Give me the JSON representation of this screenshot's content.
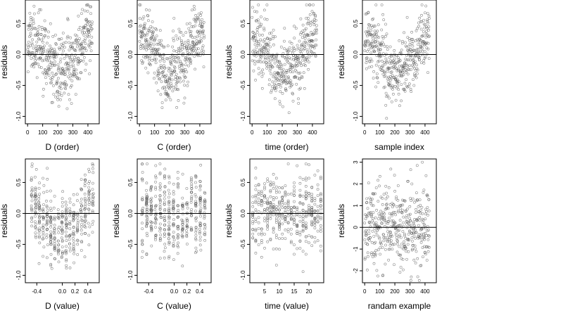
{
  "chart_data": [
    {
      "type": "scatter",
      "xlabel": "D (order)",
      "ylabel": "residuals",
      "xlim": [
        -15,
        475
      ],
      "ylim": [
        -1.12,
        0.88
      ],
      "xticks": [
        0,
        100,
        200,
        300,
        400
      ],
      "yticks": [
        -1.0,
        -0.5,
        0.0,
        0.5
      ],
      "ytick_labels": [
        "-1.0",
        "-0.5",
        "0.0",
        "0.5"
      ],
      "reference_line_y": 0,
      "pattern": "order",
      "seed": 11
    },
    {
      "type": "scatter",
      "xlabel": "C (order)",
      "ylabel": "residuals",
      "xlim": [
        -15,
        475
      ],
      "ylim": [
        -1.12,
        0.88
      ],
      "xticks": [
        0,
        100,
        200,
        300,
        400
      ],
      "yticks": [
        -1.0,
        -0.5,
        0.0,
        0.5
      ],
      "ytick_labels": [
        "-1.0",
        "-0.5",
        "0.0",
        "0.5"
      ],
      "reference_line_y": 0,
      "pattern": "order",
      "seed": 23
    },
    {
      "type": "scatter",
      "xlabel": "time (order)",
      "ylabel": "residuals",
      "xlim": [
        -15,
        475
      ],
      "ylim": [
        -1.12,
        0.88
      ],
      "xticks": [
        0,
        100,
        200,
        300,
        400
      ],
      "yticks": [
        -1.0,
        -0.5,
        0.0,
        0.5
      ],
      "ytick_labels": [
        "-1.0",
        "-0.5",
        "0.0",
        "0.5"
      ],
      "reference_line_y": 0,
      "pattern": "order",
      "seed": 37
    },
    {
      "type": "scatter",
      "xlabel": "sample index",
      "ylabel": "residuals",
      "xlim": [
        -15,
        475
      ],
      "ylim": [
        -1.12,
        0.88
      ],
      "xticks": [
        0,
        100,
        200,
        300,
        400
      ],
      "yticks": [
        -1.0,
        -0.5,
        0.0,
        0.5
      ],
      "ytick_labels": [
        "-1.0",
        "-0.5",
        "0.0",
        "0.5"
      ],
      "reference_line_y": 0,
      "pattern": "order",
      "seed": 41
    },
    {
      "type": "scatter",
      "xlabel": "D (value)",
      "ylabel": "residuals",
      "xlim": [
        -0.58,
        0.58
      ],
      "ylim": [
        -1.12,
        0.88
      ],
      "xticks": [
        -0.4,
        0.0,
        0.2,
        0.4
      ],
      "xtick_labels": [
        "-0.4",
        "0.0",
        "0.2",
        "0.4"
      ],
      "yticks": [
        -1.0,
        -0.5,
        0.0,
        0.5
      ],
      "ytick_labels": [
        "-1.0",
        "-0.5",
        "0.0",
        "0.5"
      ],
      "reference_line_y": 0,
      "pattern": "dvalue",
      "seed": 53
    },
    {
      "type": "scatter",
      "xlabel": "C (value)",
      "ylabel": "residuals",
      "xlim": [
        -0.58,
        0.58
      ],
      "ylim": [
        -1.12,
        0.88
      ],
      "xticks": [
        -0.4,
        0.0,
        0.2,
        0.4
      ],
      "xtick_labels": [
        "-0.4",
        "0.0",
        "0.2",
        "0.4"
      ],
      "yticks": [
        -1.0,
        -0.5,
        0.0,
        0.5
      ],
      "ytick_labels": [
        "-1.0",
        "-0.5",
        "0.0",
        "0.5"
      ],
      "reference_line_y": 0,
      "pattern": "cvalue",
      "seed": 67
    },
    {
      "type": "scatter",
      "xlabel": "time (value)",
      "ylabel": "residuals",
      "xlim": [
        0,
        25
      ],
      "ylim": [
        -1.12,
        0.88
      ],
      "xticks": [
        5,
        10,
        15,
        20
      ],
      "yticks": [
        -1.0,
        -0.5,
        0.0,
        0.5
      ],
      "ytick_labels": [
        "-1.0",
        "-0.5",
        "0.0",
        "0.5"
      ],
      "reference_line_y": 0,
      "pattern": "tvalue",
      "seed": 79
    },
    {
      "type": "scatter",
      "xlabel": "randam example",
      "ylabel": "residuals",
      "xlim": [
        -15,
        475
      ],
      "ylim": [
        -2.55,
        3.15
      ],
      "xticks": [
        0,
        100,
        200,
        300,
        400
      ],
      "yticks": [
        -2,
        -1,
        0,
        1,
        2,
        3
      ],
      "reference_line_y": 0,
      "pattern": "random",
      "seed": 97
    }
  ]
}
